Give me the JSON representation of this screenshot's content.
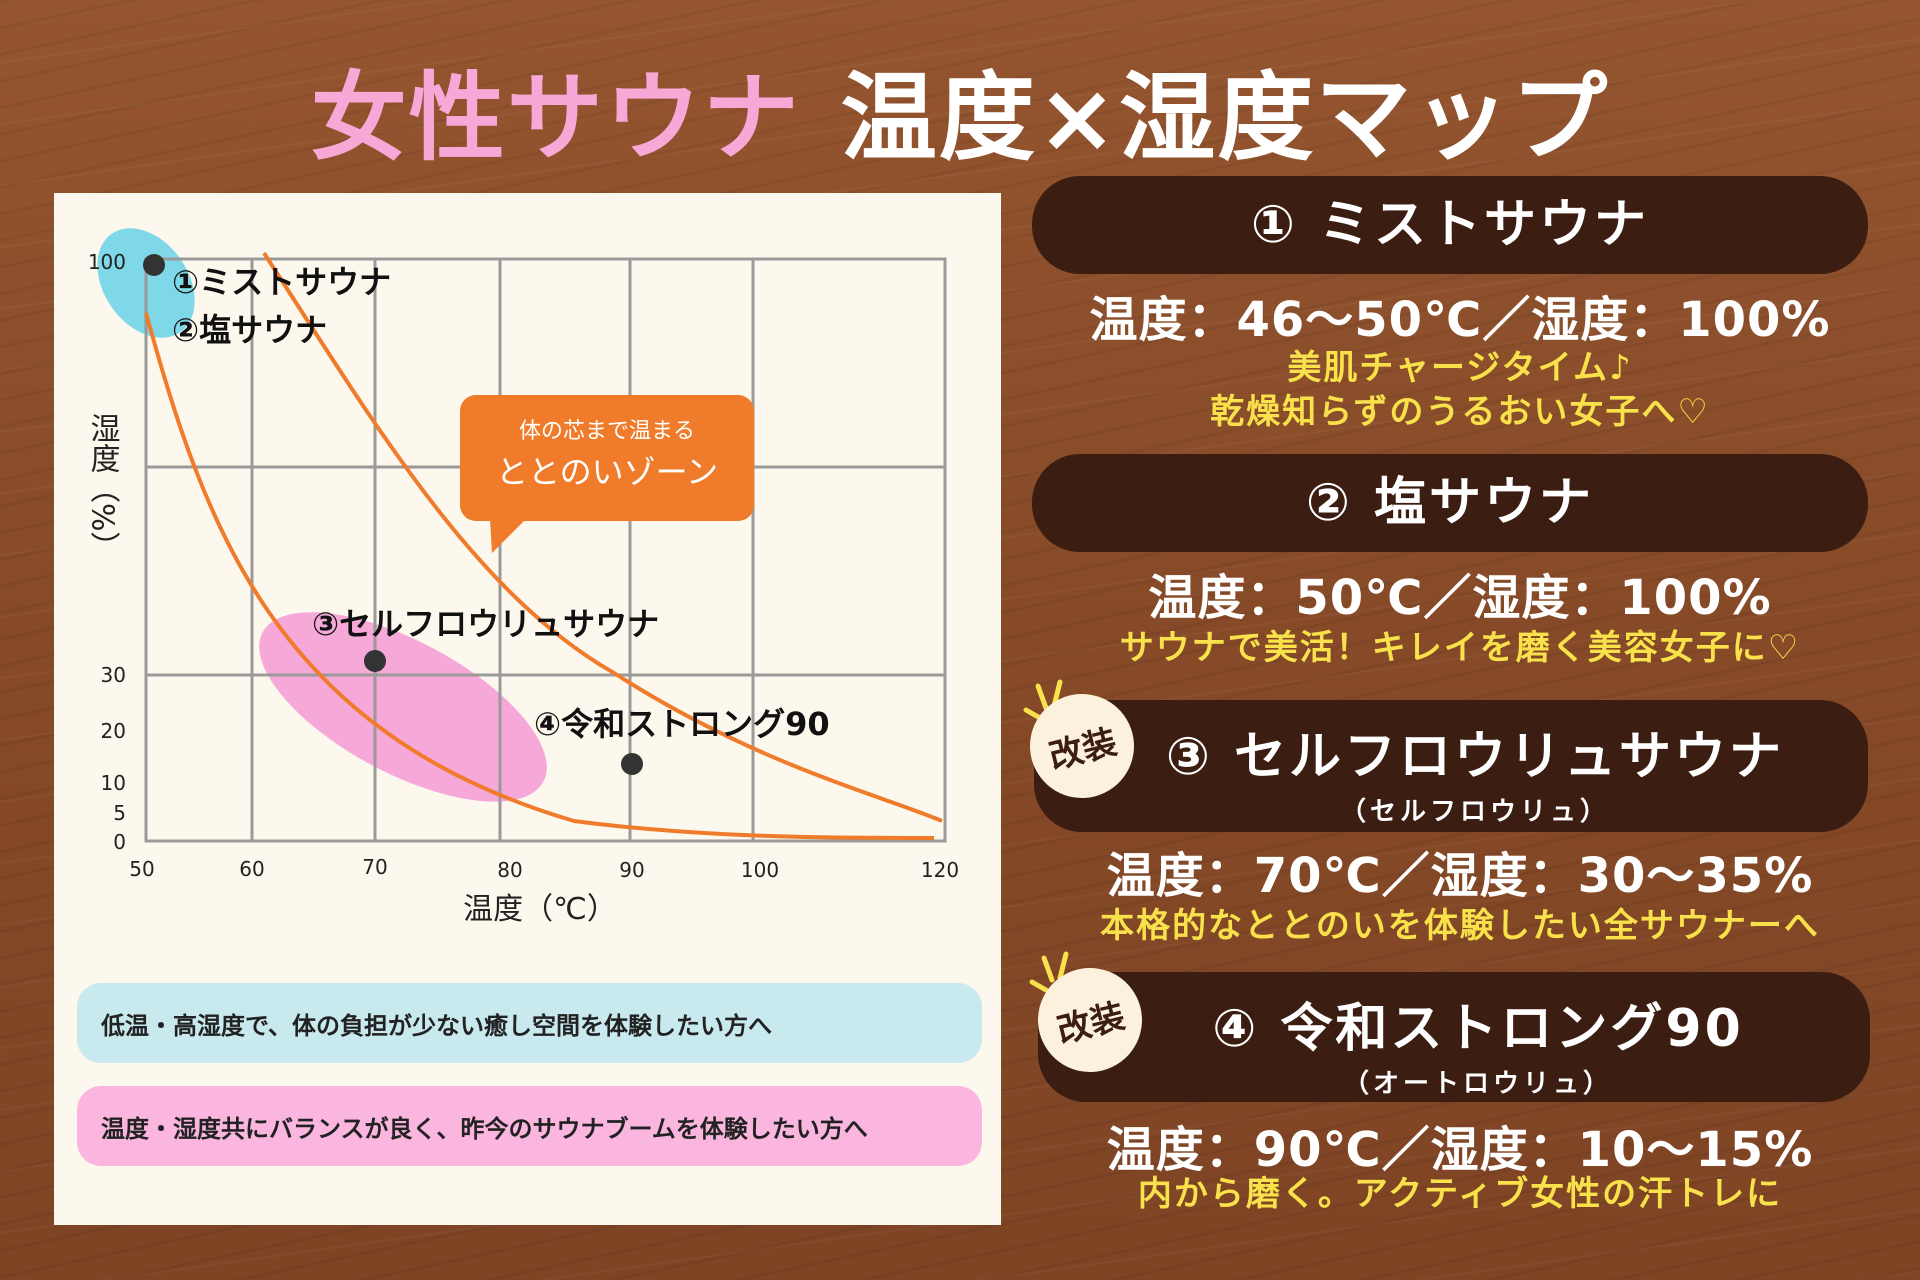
{
  "title": {
    "pink": "女性サウナ",
    "white": "温度×湿度マップ"
  },
  "chart_data": {
    "type": "scatter",
    "xlabel": "温度（℃）",
    "ylabel": "湿度（%）",
    "x_ticks": [
      "50",
      "60",
      "70",
      "80",
      "90",
      "100",
      "120"
    ],
    "y_ticks": [
      "100",
      "30",
      "20",
      "10",
      "5",
      "0"
    ],
    "points": [
      {
        "label": "①ミストサウナ",
        "x": 50,
        "y": 100
      },
      {
        "label": "②塩サウナ",
        "x": 50,
        "y": 100
      },
      {
        "label": "③セルフロウリュサウナ",
        "x": 70,
        "y": 30
      },
      {
        "label": "④令和ストロング90",
        "x": 90,
        "y": 15
      }
    ],
    "callout": {
      "line1": "体の芯まで温まる",
      "line2": "ととのいゾーン"
    },
    "colors": {
      "curve": "#f07b2b",
      "zone_blue": "#7fd8e8",
      "zone_pink": "#f6a8d8",
      "callout": "#f07b2b",
      "point": "#333333"
    }
  },
  "notes": {
    "blue": "低温・高湿度で、体の負担が少ない癒し空間を体験したい方へ",
    "pink": "温度・湿度共にバランスが良く、昨今のサウナブームを体験したい方へ"
  },
  "saunas": [
    {
      "title": "① ミストサウナ",
      "temp": "温度：46〜50℃／湿度：100%",
      "tagline1": "美肌チャージタイム♪",
      "tagline2": "乾燥知らずのうるおい女子へ♡"
    },
    {
      "title": "②  塩サウナ",
      "temp": "温度：50℃／湿度：100%",
      "tagline1": "サウナで美活！キレイを磨く美容女子に♡"
    },
    {
      "badge": "改装",
      "title": "③ セルフロウリュサウナ",
      "sub": "（セルフロウリュ）",
      "temp": "温度：70℃／湿度：30〜35%",
      "tagline1": "本格的なととのいを体験したい全サウナーへ"
    },
    {
      "badge": "改装",
      "title": "④ 令和ストロング90",
      "sub": "（オートロウリュ）",
      "temp": "温度：90℃／湿度：10〜15%",
      "tagline1": "内から磨く。アクティブ女性の汗トレに"
    }
  ]
}
